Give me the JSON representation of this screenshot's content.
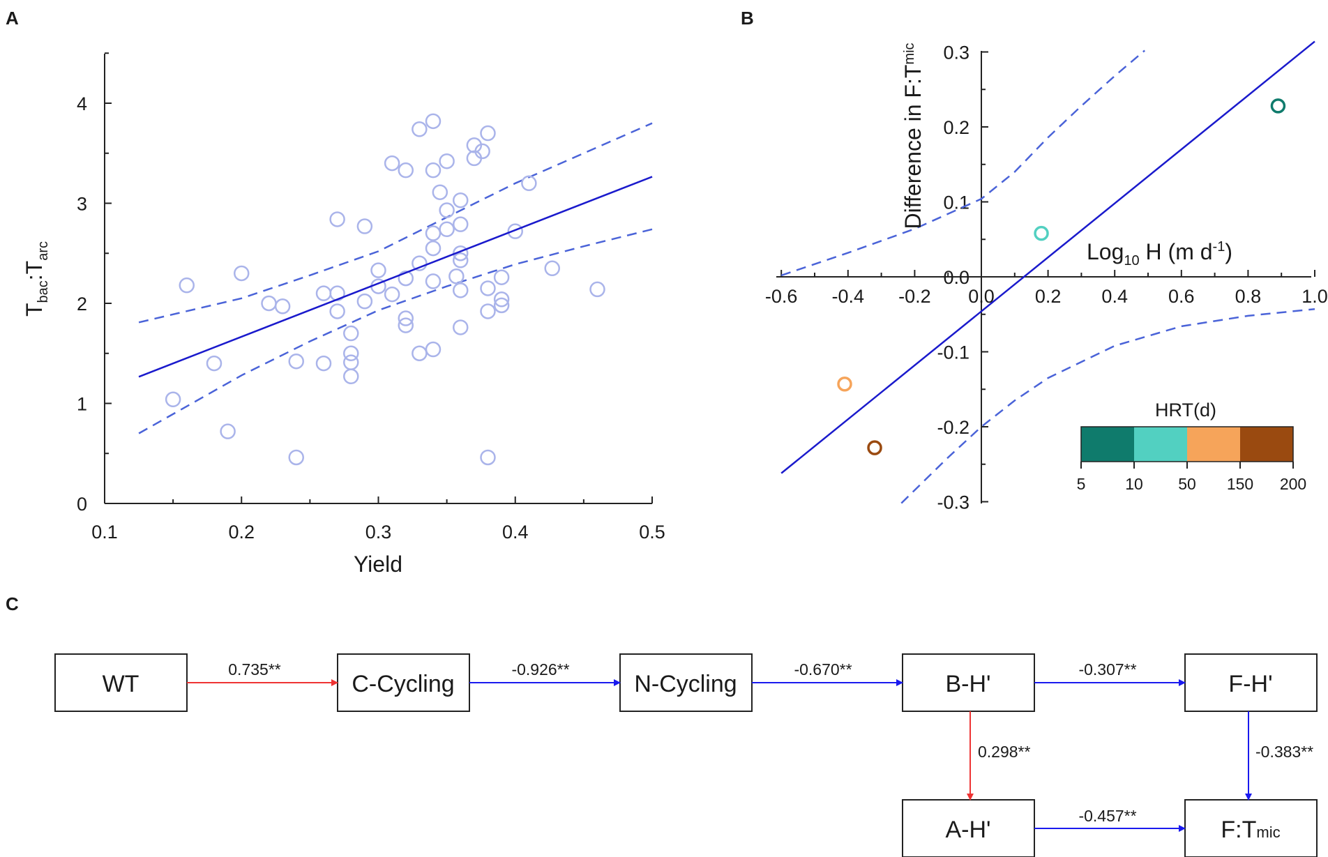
{
  "figure": {
    "panel_a_letter": "A",
    "panel_b_letter": "B",
    "panel_c_letter": "C"
  },
  "chart_data": [
    {
      "panel": "A",
      "type": "scatter",
      "xlabel": "Yield",
      "ylabel": {
        "base": "T",
        "sub1": "bac",
        "sep": ":T",
        "sub2": "arc"
      },
      "xlim": [
        0.1,
        0.5
      ],
      "ylim": [
        0,
        4.5
      ],
      "xticks": [
        0.1,
        0.2,
        0.3,
        0.4,
        0.5
      ],
      "yticks": [
        0,
        1,
        2,
        3,
        4
      ],
      "xtick_labels": [
        "0.1",
        "0.2",
        "0.3",
        "0.4",
        "0.5"
      ],
      "ytick_labels": [
        "0",
        "1",
        "2",
        "3",
        "4"
      ],
      "point_color": "#aab4ea",
      "line_color": "#1a1acc",
      "ci_color": "#4a63d8",
      "points": [
        [
          0.15,
          1.04
        ],
        [
          0.16,
          2.18
        ],
        [
          0.18,
          1.4
        ],
        [
          0.19,
          0.72
        ],
        [
          0.2,
          2.3
        ],
        [
          0.22,
          2.0
        ],
        [
          0.23,
          1.97
        ],
        [
          0.24,
          1.42
        ],
        [
          0.24,
          0.46
        ],
        [
          0.26,
          2.1
        ],
        [
          0.26,
          1.4
        ],
        [
          0.27,
          2.84
        ],
        [
          0.27,
          2.1
        ],
        [
          0.27,
          1.92
        ],
        [
          0.28,
          1.7
        ],
        [
          0.28,
          1.5
        ],
        [
          0.28,
          1.41
        ],
        [
          0.28,
          1.27
        ],
        [
          0.29,
          2.77
        ],
        [
          0.29,
          2.02
        ],
        [
          0.3,
          2.33
        ],
        [
          0.3,
          2.17
        ],
        [
          0.31,
          2.09
        ],
        [
          0.31,
          3.4
        ],
        [
          0.32,
          3.33
        ],
        [
          0.32,
          2.25
        ],
        [
          0.32,
          1.85
        ],
        [
          0.32,
          1.78
        ],
        [
          0.33,
          3.74
        ],
        [
          0.33,
          2.4
        ],
        [
          0.33,
          1.5
        ],
        [
          0.34,
          3.82
        ],
        [
          0.34,
          3.33
        ],
        [
          0.34,
          2.7
        ],
        [
          0.34,
          2.55
        ],
        [
          0.34,
          2.22
        ],
        [
          0.34,
          1.54
        ],
        [
          0.345,
          3.11
        ],
        [
          0.35,
          3.42
        ],
        [
          0.35,
          2.93
        ],
        [
          0.35,
          2.74
        ],
        [
          0.357,
          2.27
        ],
        [
          0.36,
          3.03
        ],
        [
          0.36,
          2.79
        ],
        [
          0.36,
          2.5
        ],
        [
          0.36,
          2.43
        ],
        [
          0.36,
          2.13
        ],
        [
          0.36,
          1.76
        ],
        [
          0.37,
          3.58
        ],
        [
          0.37,
          3.45
        ],
        [
          0.376,
          3.52
        ],
        [
          0.38,
          3.7
        ],
        [
          0.38,
          2.15
        ],
        [
          0.38,
          1.92
        ],
        [
          0.38,
          0.46
        ],
        [
          0.39,
          2.26
        ],
        [
          0.39,
          2.04
        ],
        [
          0.39,
          1.98
        ],
        [
          0.4,
          2.72
        ],
        [
          0.41,
          3.2
        ],
        [
          0.427,
          2.35
        ],
        [
          0.46,
          2.14
        ]
      ],
      "fit": {
        "slope": 5.33,
        "intercept": 0.6,
        "x_range": [
          0.125,
          0.5
        ]
      },
      "ci_upper": [
        [
          0.125,
          1.81
        ],
        [
          0.2,
          2.05
        ],
        [
          0.25,
          2.28
        ],
        [
          0.3,
          2.52
        ],
        [
          0.35,
          2.86
        ],
        [
          0.4,
          3.2
        ],
        [
          0.45,
          3.5
        ],
        [
          0.5,
          3.8
        ]
      ],
      "ci_lower": [
        [
          0.125,
          0.7
        ],
        [
          0.2,
          1.28
        ],
        [
          0.25,
          1.62
        ],
        [
          0.3,
          1.93
        ],
        [
          0.35,
          2.17
        ],
        [
          0.4,
          2.39
        ],
        [
          0.45,
          2.57
        ],
        [
          0.5,
          2.74
        ]
      ]
    },
    {
      "panel": "B",
      "type": "scatter",
      "xlabel": {
        "base": "Log",
        "sub": "10",
        "rest": " H (m d",
        "sup": "-1",
        "close": ")"
      },
      "ylabel": {
        "base": "Difference in F:T",
        "sub": "mic"
      },
      "xlim": [
        -0.6,
        1.0
      ],
      "ylim": [
        -0.3,
        0.3
      ],
      "xticks": [
        -0.6,
        -0.4,
        -0.2,
        0.0,
        0.2,
        0.4,
        0.6,
        0.8,
        1.0
      ],
      "yticks": [
        -0.3,
        -0.2,
        -0.1,
        0.0,
        0.1,
        0.2,
        0.3
      ],
      "xtick_labels": [
        "-0.6",
        "-0.4",
        "-0.2",
        "0.0",
        "0.2",
        "0.4",
        "0.6",
        "0.8",
        "1.0"
      ],
      "ytick_labels": [
        "-0.3",
        "-0.2",
        "-0.1",
        "0.0",
        "0.1",
        "0.2",
        "0.3"
      ],
      "line_color": "#1a1acc",
      "ci_color": "#4a63d8",
      "points": [
        {
          "x": 0.89,
          "y": 0.228,
          "color": "#0f7b6c"
        },
        {
          "x": 0.18,
          "y": 0.058,
          "color": "#52d0c1"
        },
        {
          "x": -0.41,
          "y": -0.143,
          "color": "#f6a45a"
        },
        {
          "x": -0.32,
          "y": -0.228,
          "color": "#9a4a10"
        }
      ],
      "fit": {
        "slope": 0.36,
        "intercept": -0.046,
        "x_range": [
          -0.6,
          1.0
        ]
      },
      "ci_upper": [
        [
          -0.6,
          0.002
        ],
        [
          -0.4,
          0.032
        ],
        [
          -0.2,
          0.064
        ],
        [
          0.0,
          0.104
        ],
        [
          0.1,
          0.14
        ],
        [
          0.2,
          0.186
        ],
        [
          0.3,
          0.228
        ],
        [
          0.4,
          0.268
        ],
        [
          0.49,
          0.302
        ]
      ],
      "ci_lower": [
        [
          -0.24,
          -0.302
        ],
        [
          -0.1,
          -0.241
        ],
        [
          0.0,
          -0.2
        ],
        [
          0.1,
          -0.165
        ],
        [
          0.2,
          -0.135
        ],
        [
          0.4,
          -0.092
        ],
        [
          0.6,
          -0.066
        ],
        [
          0.8,
          -0.052
        ],
        [
          1.0,
          -0.043
        ]
      ],
      "legend": {
        "title": "HRT(d)",
        "colors": [
          "#0f7b6c",
          "#52d0c1",
          "#f6a45a",
          "#9a4a10"
        ],
        "ticks": [
          "5",
          "10",
          "50",
          "150",
          "200"
        ]
      }
    }
  ],
  "path_diagram": {
    "nodes": {
      "wt": "WT",
      "c_cycling": "C-Cycling",
      "n_cycling": "N-Cycling",
      "b_h": "B-H'",
      "f_h": "F-H'",
      "a_h": "A-H'",
      "f_t": {
        "base": "F:T",
        "sub": "mic"
      }
    },
    "edges": {
      "wt_c": {
        "label": "0.735**",
        "color": "#ee3333"
      },
      "c_n": {
        "label": "-0.926**",
        "color": "#1a1aee"
      },
      "n_b": {
        "label": "-0.670**",
        "color": "#1a1aee"
      },
      "b_f": {
        "label": "-0.307**",
        "color": "#1a1aee"
      },
      "b_a": {
        "label": "0.298**",
        "color": "#ee3333"
      },
      "f_ft": {
        "label": "-0.383**",
        "color": "#1a1aee"
      },
      "a_ft": {
        "label": "-0.457**",
        "color": "#1a1aee"
      }
    }
  }
}
